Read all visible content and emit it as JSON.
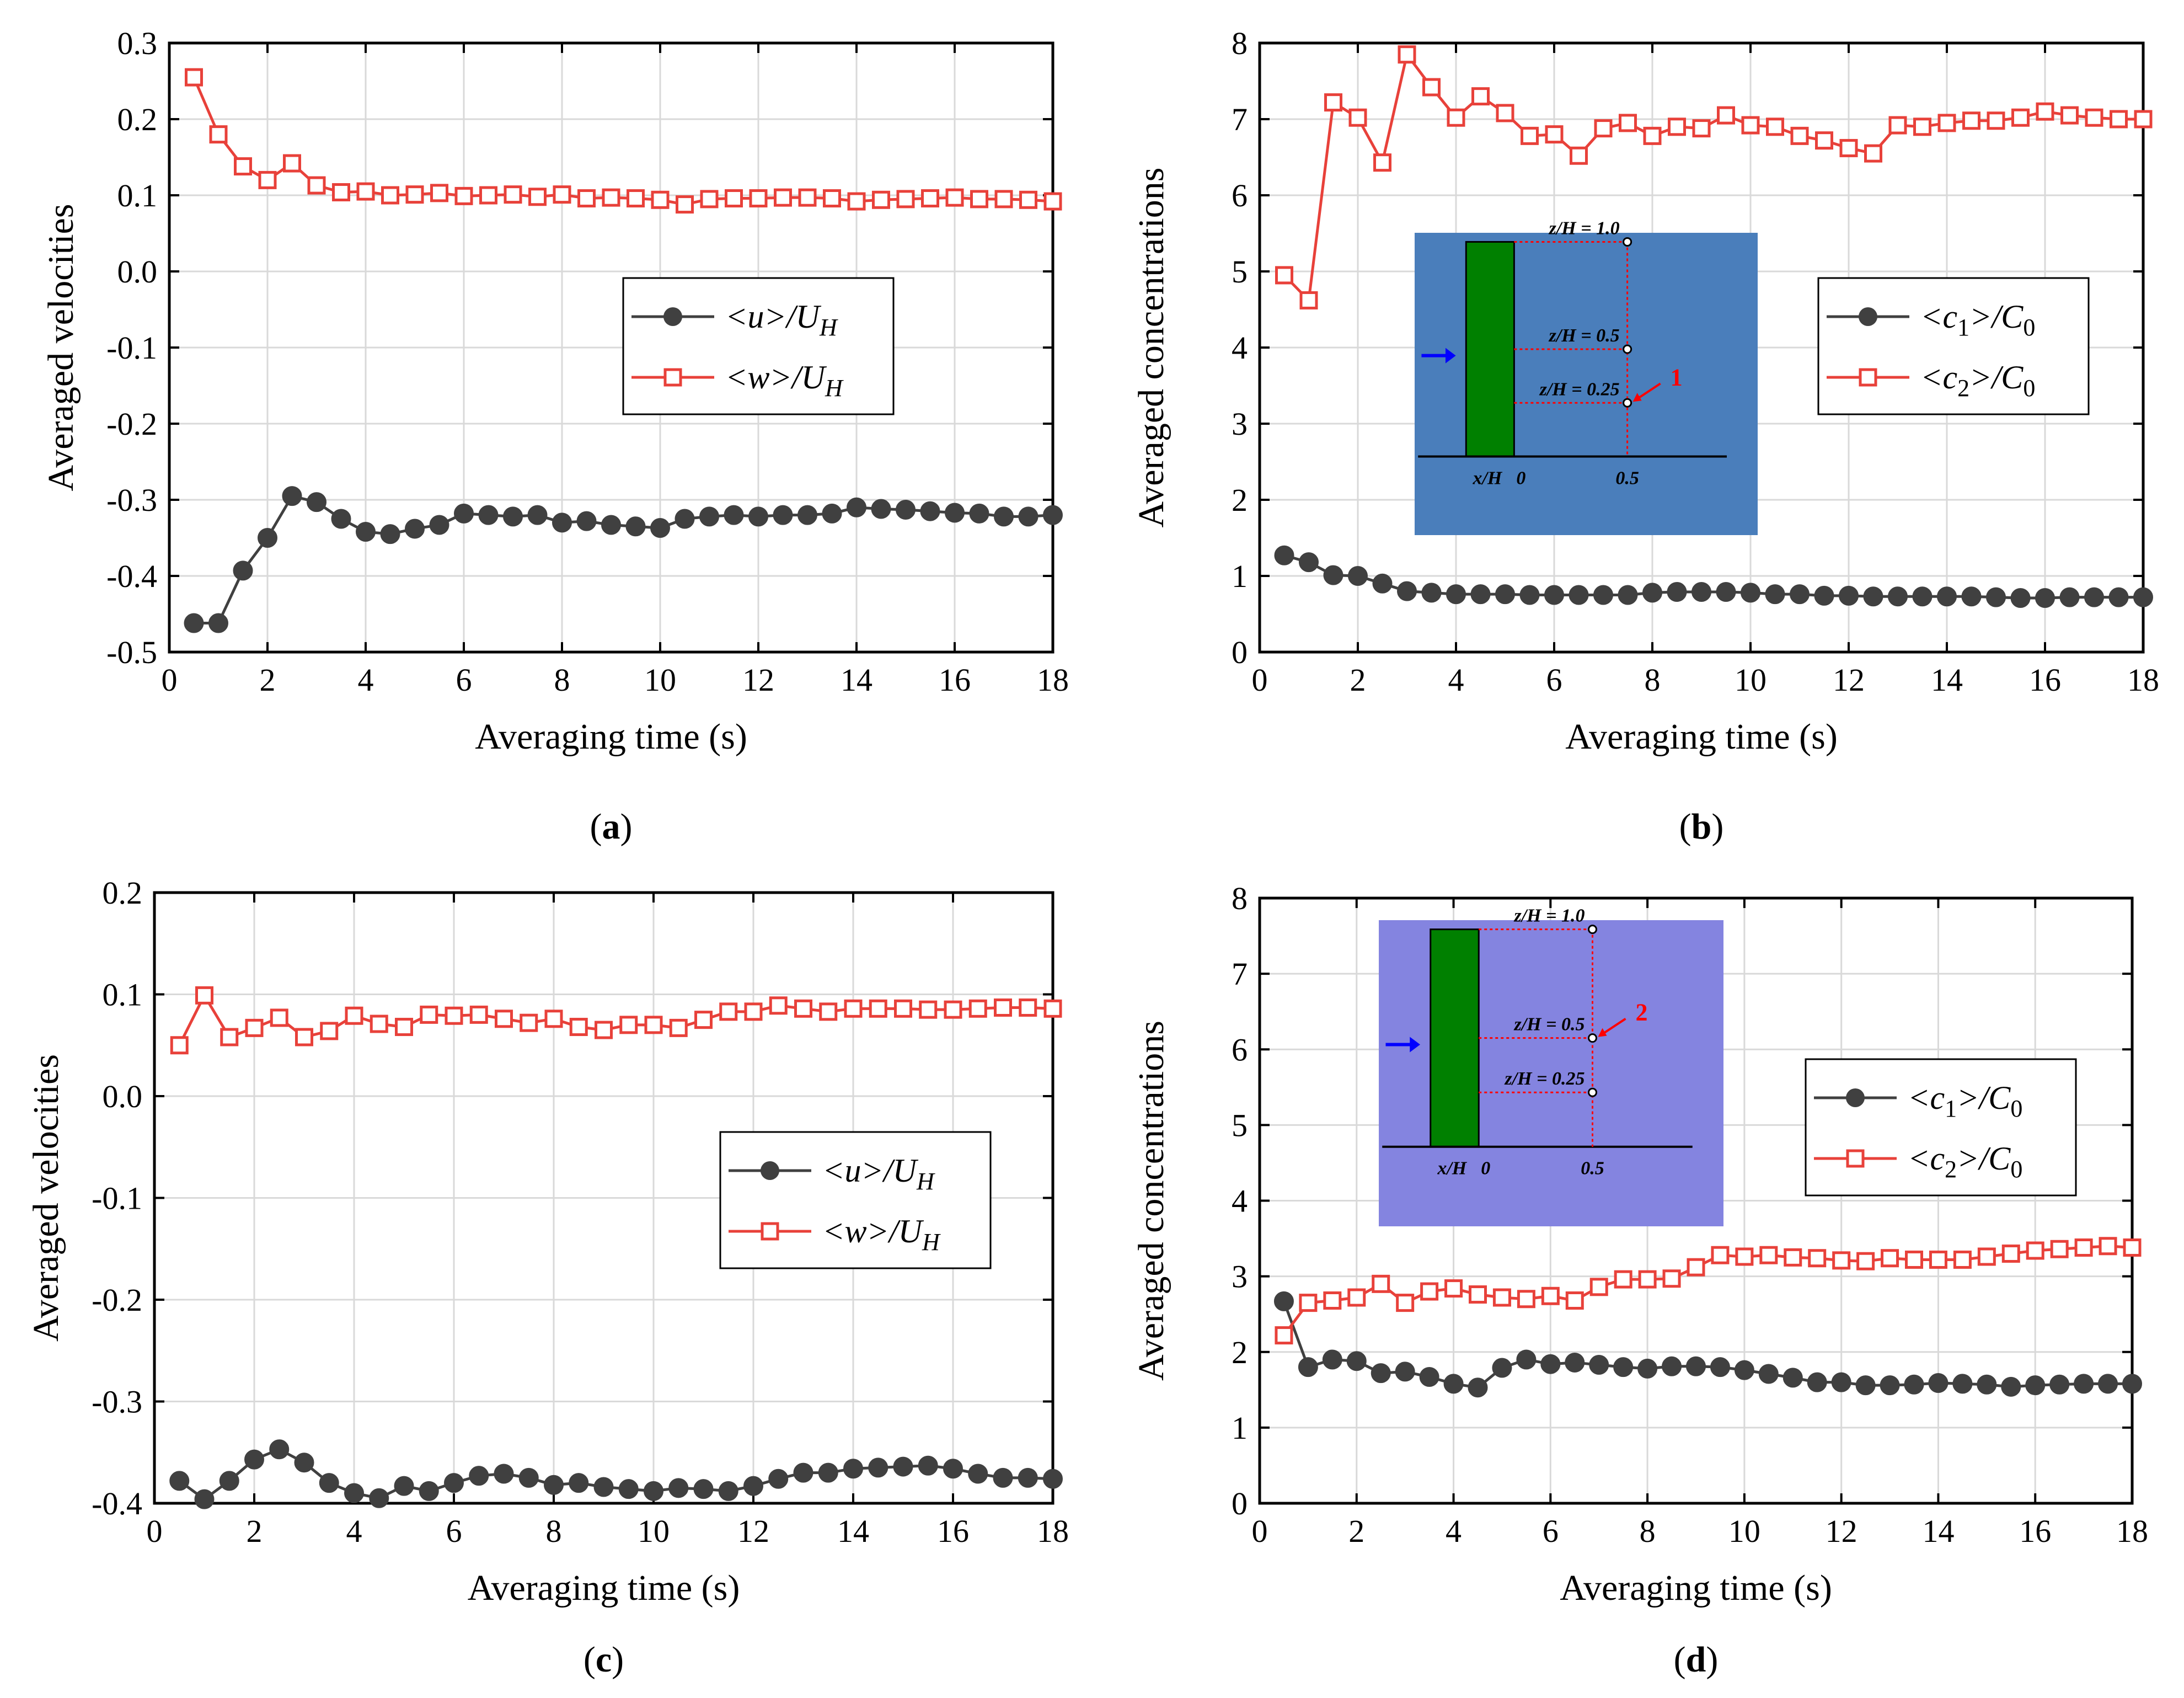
{
  "colors": {
    "series_u": "#404040",
    "series_w": "#e8413a",
    "grid": "#d9d9d9",
    "inset_bg_b": "#4a7ebb",
    "inset_bg_d": "#8484e0",
    "building": "#008000",
    "arrow_flow": "#0000ff",
    "arrow_point": "#ff0000",
    "dotted_line": "#ff0000"
  },
  "panels": [
    {
      "label": "(a)",
      "label_letter": "a",
      "chart_data": {
        "type": "line",
        "title": "",
        "xlabel": "Averaging time (s)",
        "ylabel": "Averaged velocities",
        "xlim": [
          0,
          18
        ],
        "ylim": [
          -0.5,
          0.3
        ],
        "xticks": [
          0,
          2,
          4,
          6,
          8,
          10,
          12,
          14,
          16,
          18
        ],
        "yticks": [
          -0.5,
          -0.4,
          -0.3,
          -0.2,
          -0.1,
          0.0,
          0.1,
          0.2,
          0.3
        ],
        "ytick_labels": [
          "-0.5",
          "-0.4",
          "-0.3",
          "-0.2",
          "-0.1",
          "0.0",
          "0.1",
          "0.2",
          "0.3"
        ],
        "grid": true,
        "legend_position": "middle-right",
        "x": [
          0.5,
          1.0,
          1.5,
          2.0,
          2.5,
          3.0,
          3.5,
          4.0,
          4.5,
          5.0,
          5.5,
          6.0,
          6.5,
          7.0,
          7.5,
          8.0,
          8.5,
          9.0,
          9.5,
          10.0,
          10.5,
          11.0,
          11.5,
          12.0,
          12.5,
          13.0,
          13.5,
          14.0,
          14.5,
          15.0,
          15.5,
          16.0,
          16.5,
          17.0,
          17.5,
          18.0
        ],
        "series": [
          {
            "name": "<u>/U_H",
            "legend_main": "<u>/U",
            "legend_sub": "H",
            "style": "filled-circle",
            "values": [
              -0.462,
              -0.462,
              -0.393,
              -0.35,
              -0.295,
              -0.303,
              -0.325,
              -0.342,
              -0.345,
              -0.338,
              -0.333,
              -0.318,
              -0.32,
              -0.322,
              -0.32,
              -0.33,
              -0.328,
              -0.333,
              -0.335,
              -0.337,
              -0.325,
              -0.322,
              -0.32,
              -0.322,
              -0.32,
              -0.32,
              -0.318,
              -0.31,
              -0.312,
              -0.313,
              -0.315,
              -0.317,
              -0.318,
              -0.322,
              -0.322,
              -0.32
            ]
          },
          {
            "name": "<w>/U_H",
            "legend_main": "<w>/U",
            "legend_sub": "H",
            "style": "open-square",
            "values": [
              0.255,
              0.18,
              0.138,
              0.12,
              0.142,
              0.113,
              0.104,
              0.105,
              0.1,
              0.101,
              0.103,
              0.099,
              0.1,
              0.101,
              0.098,
              0.101,
              0.096,
              0.097,
              0.096,
              0.094,
              0.088,
              0.095,
              0.096,
              0.096,
              0.097,
              0.097,
              0.096,
              0.092,
              0.094,
              0.095,
              0.096,
              0.097,
              0.095,
              0.095,
              0.094,
              0.092
            ]
          }
        ]
      }
    },
    {
      "label": "(b)",
      "label_letter": "b",
      "chart_data": {
        "type": "line",
        "title": "",
        "xlabel": "Averaging time (s)",
        "ylabel": "Averaged concentrations",
        "xlim": [
          0,
          18
        ],
        "ylim": [
          0,
          8
        ],
        "xticks": [
          0,
          2,
          4,
          6,
          8,
          10,
          12,
          14,
          16,
          18
        ],
        "yticks": [
          0,
          1,
          2,
          3,
          4,
          5,
          6,
          7,
          8
        ],
        "ytick_labels": [
          "0",
          "1",
          "2",
          "3",
          "4",
          "5",
          "6",
          "7",
          "8"
        ],
        "grid": true,
        "legend_position": "middle-right",
        "x": [
          0.5,
          1.0,
          1.5,
          2.0,
          2.5,
          3.0,
          3.5,
          4.0,
          4.5,
          5.0,
          5.5,
          6.0,
          6.5,
          7.0,
          7.5,
          8.0,
          8.5,
          9.0,
          9.5,
          10.0,
          10.5,
          11.0,
          11.5,
          12.0,
          12.5,
          13.0,
          13.5,
          14.0,
          14.5,
          15.0,
          15.5,
          16.0,
          16.5,
          17.0,
          17.5,
          18.0
        ],
        "series": [
          {
            "name": "<c1>/C0",
            "legend_main": "<c",
            "legend_sub": "1",
            "legend_mid": ">/C",
            "legend_sub2": "0",
            "style": "filled-circle",
            "values": [
              1.27,
              1.18,
              1.01,
              1.0,
              0.9,
              0.8,
              0.78,
              0.76,
              0.76,
              0.76,
              0.75,
              0.75,
              0.75,
              0.75,
              0.75,
              0.78,
              0.79,
              0.79,
              0.79,
              0.78,
              0.76,
              0.76,
              0.74,
              0.74,
              0.73,
              0.73,
              0.73,
              0.73,
              0.73,
              0.72,
              0.71,
              0.71,
              0.72,
              0.72,
              0.72,
              0.72
            ]
          },
          {
            "name": "<c2>/C0",
            "legend_main": "<c",
            "legend_sub": "2",
            "legend_mid": ">/C",
            "legend_sub2": "0",
            "style": "open-square",
            "values": [
              4.95,
              4.62,
              7.22,
              7.02,
              6.43,
              7.85,
              7.42,
              7.02,
              7.3,
              7.08,
              6.78,
              6.8,
              6.52,
              6.88,
              6.95,
              6.78,
              6.9,
              6.88,
              7.05,
              6.92,
              6.9,
              6.78,
              6.72,
              6.62,
              6.55,
              6.92,
              6.9,
              6.95,
              6.98,
              6.98,
              7.02,
              7.1,
              7.05,
              7.02,
              7.0,
              7.0
            ]
          }
        ]
      },
      "inset": {
        "labels": [
          "z/H = 1.0",
          "z/H = 0.5",
          "z/H = 0.25"
        ],
        "x_axis_label": "x/H",
        "x_ticks": [
          "0",
          "0.5"
        ],
        "marker_number": "1",
        "highlight_index": 2
      }
    },
    {
      "label": "(c)",
      "label_letter": "c",
      "chart_data": {
        "type": "line",
        "title": "",
        "xlabel": "Averaging time (s)",
        "ylabel": "Averaged velocities",
        "xlim": [
          0,
          18
        ],
        "ylim": [
          -0.4,
          0.2
        ],
        "xticks": [
          0,
          2,
          4,
          6,
          8,
          10,
          12,
          14,
          16,
          18
        ],
        "yticks": [
          -0.4,
          -0.3,
          -0.2,
          -0.1,
          0.0,
          0.1,
          0.2
        ],
        "ytick_labels": [
          "-0.4",
          "-0.3",
          "-0.2",
          "-0.1",
          "0.0",
          "0.1",
          "0.2"
        ],
        "grid": true,
        "legend_position": "middle-right",
        "x": [
          0.5,
          1.0,
          1.5,
          2.0,
          2.5,
          3.0,
          3.5,
          4.0,
          4.5,
          5.0,
          5.5,
          6.0,
          6.5,
          7.0,
          7.5,
          8.0,
          8.5,
          9.0,
          9.5,
          10.0,
          10.5,
          11.0,
          11.5,
          12.0,
          12.5,
          13.0,
          13.5,
          14.0,
          14.5,
          15.0,
          15.5,
          16.0,
          16.5,
          17.0,
          17.5,
          18.0
        ],
        "series": [
          {
            "name": "<u>/U_H",
            "legend_main": "<u>/U",
            "legend_sub": "H",
            "style": "filled-circle",
            "values": [
              -0.378,
              -0.396,
              -0.378,
              -0.357,
              -0.347,
              -0.36,
              -0.38,
              -0.39,
              -0.395,
              -0.383,
              -0.388,
              -0.38,
              -0.373,
              -0.371,
              -0.375,
              -0.382,
              -0.38,
              -0.384,
              -0.386,
              -0.388,
              -0.385,
              -0.386,
              -0.388,
              -0.383,
              -0.376,
              -0.37,
              -0.37,
              -0.366,
              -0.365,
              -0.364,
              -0.363,
              -0.366,
              -0.371,
              -0.375,
              -0.375,
              -0.376
            ]
          },
          {
            "name": "<w>/U_H",
            "legend_main": "<w>/U",
            "legend_sub": "H",
            "style": "open-square",
            "values": [
              0.05,
              0.099,
              0.058,
              0.067,
              0.077,
              0.058,
              0.064,
              0.079,
              0.071,
              0.068,
              0.08,
              0.079,
              0.08,
              0.076,
              0.072,
              0.076,
              0.068,
              0.065,
              0.07,
              0.07,
              0.067,
              0.075,
              0.083,
              0.083,
              0.089,
              0.086,
              0.083,
              0.086,
              0.086,
              0.086,
              0.085,
              0.085,
              0.086,
              0.087,
              0.087,
              0.086
            ]
          }
        ]
      }
    },
    {
      "label": "(d)",
      "label_letter": "d",
      "chart_data": {
        "type": "line",
        "title": "",
        "xlabel": "Averaging time (s)",
        "ylabel": "Averaged concentrations",
        "xlim": [
          0,
          18
        ],
        "ylim": [
          0,
          8
        ],
        "xticks": [
          0,
          2,
          4,
          6,
          8,
          10,
          12,
          14,
          16,
          18
        ],
        "yticks": [
          0,
          1,
          2,
          3,
          4,
          5,
          6,
          7,
          8
        ],
        "ytick_labels": [
          "0",
          "1",
          "2",
          "3",
          "4",
          "5",
          "6",
          "7",
          "8"
        ],
        "grid": true,
        "legend_position": "middle-right",
        "x": [
          0.5,
          1.0,
          1.5,
          2.0,
          2.5,
          3.0,
          3.5,
          4.0,
          4.5,
          5.0,
          5.5,
          6.0,
          6.5,
          7.0,
          7.5,
          8.0,
          8.5,
          9.0,
          9.5,
          10.0,
          10.5,
          11.0,
          11.5,
          12.0,
          12.5,
          13.0,
          13.5,
          14.0,
          14.5,
          15.0,
          15.5,
          16.0,
          16.5,
          17.0,
          17.5,
          18.0
        ],
        "series": [
          {
            "name": "<c1>/C0",
            "legend_main": "<c",
            "legend_sub": "1",
            "legend_mid": ">/C",
            "legend_sub2": "0",
            "style": "filled-circle",
            "values": [
              2.67,
              1.8,
              1.9,
              1.88,
              1.72,
              1.74,
              1.67,
              1.58,
              1.53,
              1.79,
              1.9,
              1.84,
              1.86,
              1.83,
              1.8,
              1.78,
              1.81,
              1.81,
              1.8,
              1.76,
              1.71,
              1.66,
              1.6,
              1.6,
              1.56,
              1.56,
              1.57,
              1.59,
              1.58,
              1.57,
              1.54,
              1.56,
              1.57,
              1.58,
              1.58,
              1.58
            ]
          },
          {
            "name": "<c2>/C0",
            "legend_main": "<c",
            "legend_sub": "2",
            "legend_mid": ">/C",
            "legend_sub2": "0",
            "style": "open-square",
            "values": [
              2.22,
              2.65,
              2.68,
              2.72,
              2.9,
              2.65,
              2.8,
              2.84,
              2.76,
              2.72,
              2.7,
              2.74,
              2.68,
              2.86,
              2.96,
              2.96,
              2.97,
              3.12,
              3.28,
              3.26,
              3.28,
              3.25,
              3.24,
              3.21,
              3.2,
              3.24,
              3.22,
              3.22,
              3.22,
              3.26,
              3.3,
              3.34,
              3.36,
              3.38,
              3.4,
              3.38
            ]
          }
        ]
      },
      "inset": {
        "labels": [
          "z/H = 1.0",
          "z/H = 0.5",
          "z/H = 0.25"
        ],
        "x_axis_label": "x/H",
        "x_ticks": [
          "0",
          "0.5"
        ],
        "marker_number": "2",
        "highlight_index": 1
      }
    }
  ]
}
